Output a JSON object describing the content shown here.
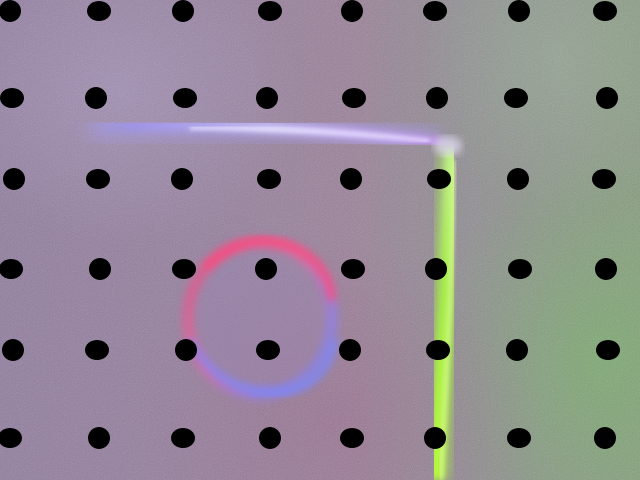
{
  "image": {
    "description_kind": "photo",
    "palette": {
      "surface_purple": "#927e99",
      "surface_green": "#86967f",
      "blue_streak": "#b9b4ff",
      "green_streak": "#b8ff40",
      "ring_red": "#ff5a8c",
      "ring_blue": "#7f8cff",
      "dot": "#000000"
    },
    "dot_grid": {
      "rows": 6,
      "cols": 8,
      "count": 48
    }
  }
}
